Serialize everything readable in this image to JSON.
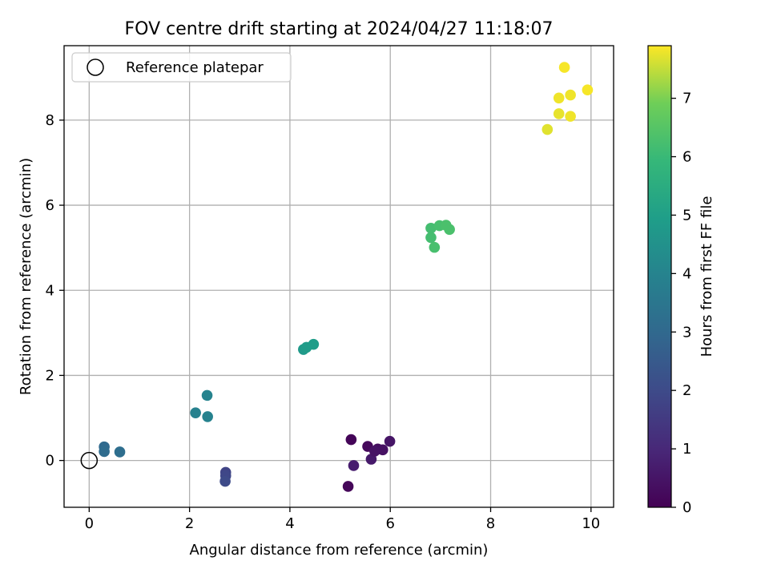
{
  "chart_data": {
    "type": "scatter",
    "title": "FOV centre drift starting at 2024/04/27 11:18:07",
    "xlabel": "Angular distance from reference (arcmin)",
    "ylabel": "Rotation from reference (arcmin)",
    "xlim": [
      -0.5,
      10.45
    ],
    "ylim": [
      -1.1,
      9.75
    ],
    "xticks": [
      0,
      2,
      4,
      6,
      8,
      10
    ],
    "yticks": [
      0,
      2,
      4,
      6,
      8
    ],
    "grid": true,
    "legend": {
      "position": "top-left",
      "entries": [
        "Reference platepar"
      ]
    },
    "reference_point": {
      "x": 0,
      "y": 0,
      "label": "Reference platepar"
    },
    "colorbar": {
      "label": "Hours from first FF file",
      "colormap": "viridis",
      "range": [
        0,
        7.9
      ],
      "ticks": [
        0,
        1,
        2,
        3,
        4,
        5,
        6,
        7
      ]
    },
    "points": [
      {
        "x": 5.22,
        "y": 0.49,
        "c": 0.1
      },
      {
        "x": 5.55,
        "y": 0.33,
        "c": 0.2
      },
      {
        "x": 5.75,
        "y": 0.27,
        "c": 0.3
      },
      {
        "x": 5.85,
        "y": 0.25,
        "c": 0.4
      },
      {
        "x": 5.99,
        "y": 0.45,
        "c": 0.5
      },
      {
        "x": 5.62,
        "y": 0.03,
        "c": 0.6
      },
      {
        "x": 5.27,
        "y": -0.12,
        "c": 0.7
      },
      {
        "x": 5.16,
        "y": -0.61,
        "c": 0.15
      },
      {
        "x": 5.69,
        "y": 0.22,
        "c": 0.45
      },
      {
        "x": 2.72,
        "y": -0.28,
        "c": 1.8
      },
      {
        "x": 2.72,
        "y": -0.36,
        "c": 1.9
      },
      {
        "x": 2.71,
        "y": -0.49,
        "c": 2.0
      },
      {
        "x": 0.3,
        "y": 0.32,
        "c": 3.05
      },
      {
        "x": 0.3,
        "y": 0.21,
        "c": 3.1
      },
      {
        "x": 0.61,
        "y": 0.2,
        "c": 3.2
      },
      {
        "x": 2.12,
        "y": 1.12,
        "c": 3.9
      },
      {
        "x": 2.35,
        "y": 1.53,
        "c": 4.0
      },
      {
        "x": 2.36,
        "y": 1.03,
        "c": 3.95
      },
      {
        "x": 4.27,
        "y": 2.61,
        "c": 4.8
      },
      {
        "x": 4.33,
        "y": 2.66,
        "c": 4.85
      },
      {
        "x": 4.47,
        "y": 2.73,
        "c": 4.9
      },
      {
        "x": 6.81,
        "y": 5.46,
        "c": 6.2
      },
      {
        "x": 6.98,
        "y": 5.52,
        "c": 6.25
      },
      {
        "x": 7.11,
        "y": 5.53,
        "c": 6.3
      },
      {
        "x": 7.18,
        "y": 5.43,
        "c": 6.3
      },
      {
        "x": 6.81,
        "y": 5.24,
        "c": 6.2
      },
      {
        "x": 6.88,
        "y": 5.01,
        "c": 6.25
      },
      {
        "x": 9.47,
        "y": 9.24,
        "c": 7.85
      },
      {
        "x": 9.36,
        "y": 8.52,
        "c": 7.8
      },
      {
        "x": 9.59,
        "y": 8.59,
        "c": 7.8
      },
      {
        "x": 9.93,
        "y": 8.71,
        "c": 7.85
      },
      {
        "x": 9.36,
        "y": 8.15,
        "c": 7.75
      },
      {
        "x": 9.59,
        "y": 8.09,
        "c": 7.8
      },
      {
        "x": 9.13,
        "y": 7.78,
        "c": 7.7
      }
    ]
  }
}
